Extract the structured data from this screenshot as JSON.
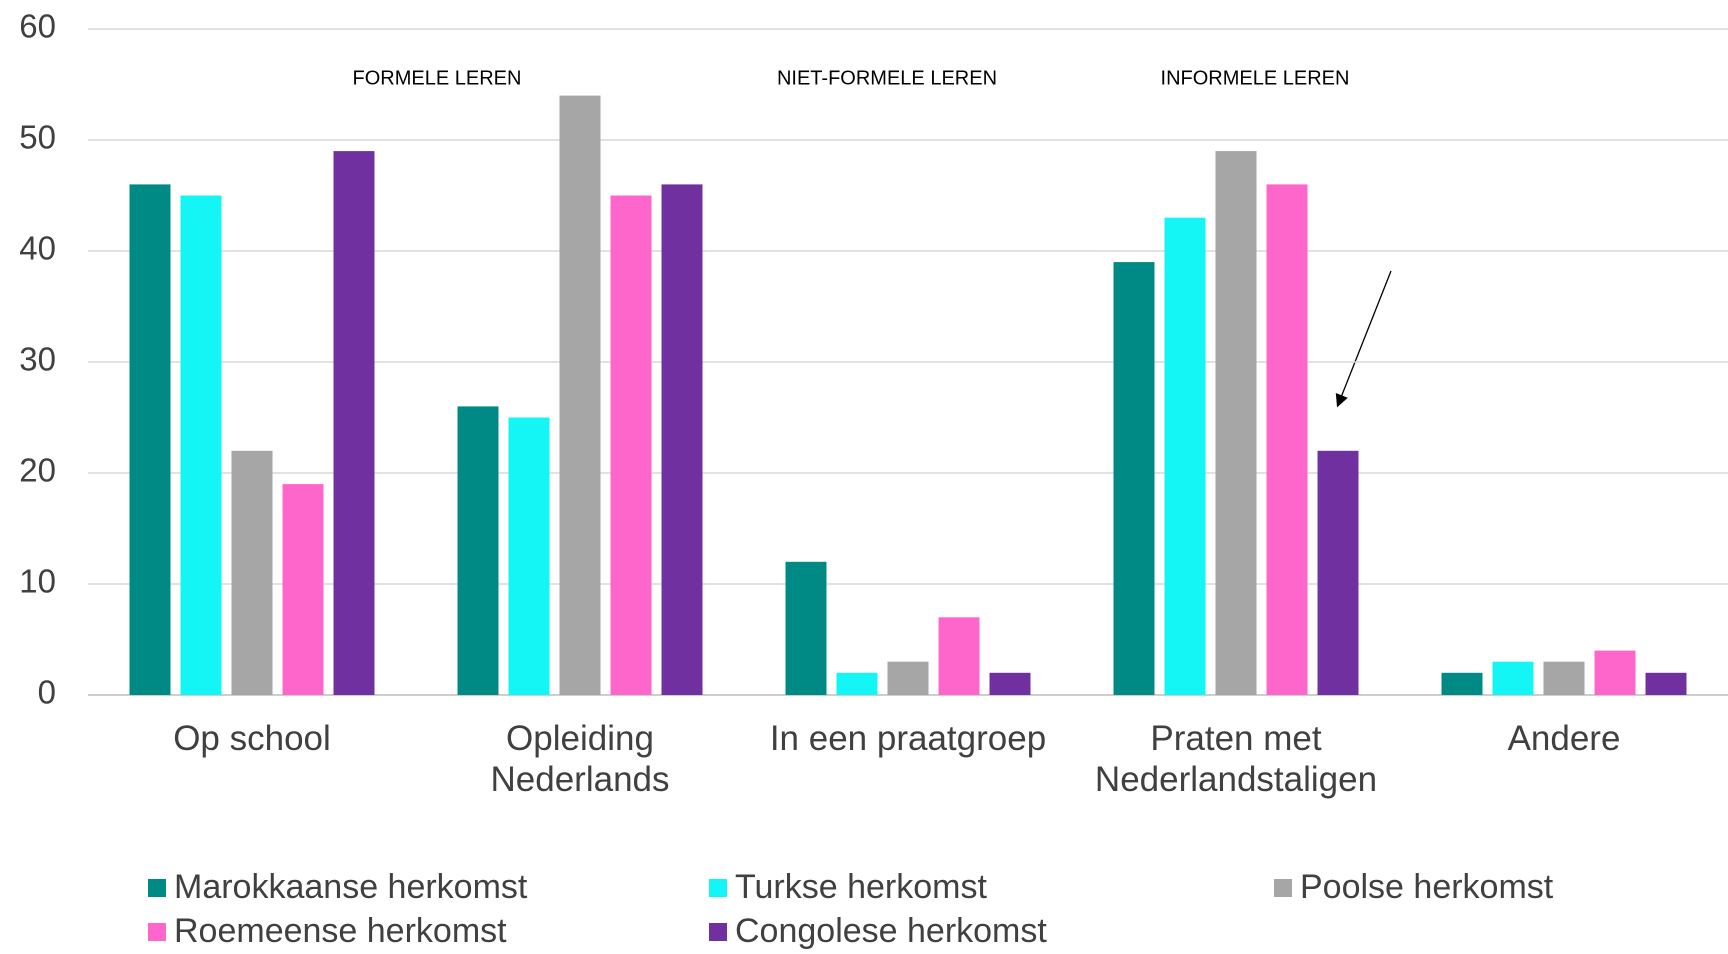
{
  "chart_data": {
    "type": "bar",
    "categories": [
      "Op school",
      "Opleiding Nederlands",
      "In een praatgroep",
      "Praten met Nederlandstaligen",
      "Andere"
    ],
    "series": [
      {
        "name": "Marokkaanse herkomst",
        "color": "#008a86",
        "values": [
          46,
          26,
          12,
          39,
          2
        ]
      },
      {
        "name": "Turkse herkomst",
        "color": "#14f5f5",
        "values": [
          45,
          25,
          2,
          43,
          3
        ]
      },
      {
        "name": "Poolse herkomst",
        "color": "#a6a6a6",
        "values": [
          22,
          54,
          3,
          49,
          3
        ]
      },
      {
        "name": "Roemeense herkomst",
        "color": "#ff66cc",
        "values": [
          19,
          45,
          7,
          46,
          4
        ]
      },
      {
        "name": "Congolese herkomst",
        "color": "#7030a0",
        "values": [
          49,
          46,
          2,
          22,
          2
        ]
      }
    ],
    "ylim": [
      0,
      60
    ],
    "yticks": [
      0,
      10,
      20,
      30,
      40,
      50,
      60
    ],
    "grid": true,
    "annotations": [
      "FORMELE LEREN",
      "NIET-FORMELE LEREN",
      "INFORMELE LEREN"
    ]
  }
}
